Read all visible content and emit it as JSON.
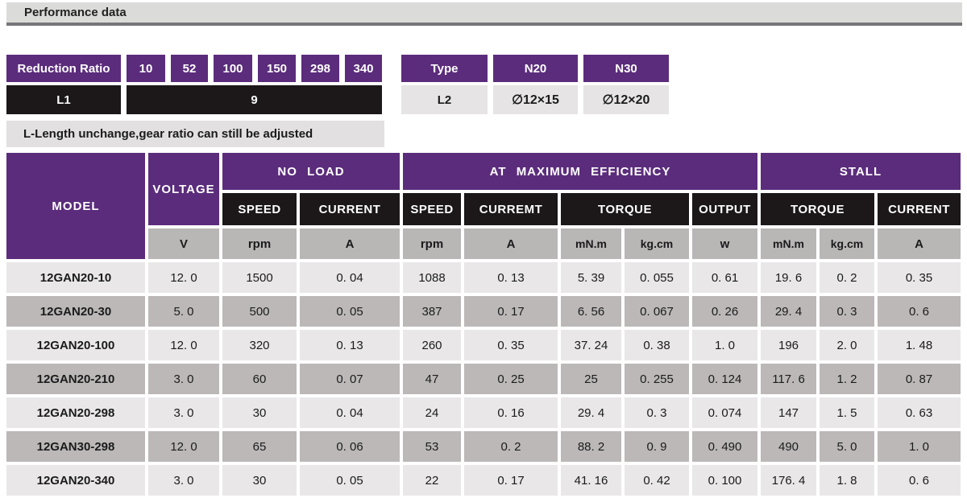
{
  "header": {
    "title": "Performance data"
  },
  "colors": {
    "purple": "#5b2c7c",
    "black_cell": "#1c1819",
    "unit_gray": "#b9b6b6",
    "row_light": "#e9e7e7",
    "row_dark": "#bcb8b8",
    "titlebar_bg": "#dbdbd9",
    "titlebar_border": "#76767a"
  },
  "reduction_table": {
    "label": "Reduction Ratio",
    "ratios": [
      "10",
      "52",
      "100",
      "150",
      "298",
      "340"
    ],
    "l1_label": "L1",
    "l1_value": "9"
  },
  "type_table": {
    "type_header": "Type",
    "col_headers": [
      "N20",
      "N30"
    ],
    "row_label": "L2",
    "row_values": [
      "∅12×15",
      "∅12×20"
    ]
  },
  "note_text": "L-Length unchange,gear ratio can still be adjusted",
  "main_table": {
    "model_header": "MODEL",
    "voltage_header": "VOLTAGE",
    "group_headers": {
      "no_load": "NO LOAD",
      "max_efficiency": "AT MAXIMUM EFFICIENCY",
      "stall": "STALL"
    },
    "sub_headers": [
      "SPEED",
      "CURRENT",
      "SPEED",
      "CURREMT",
      "TORQUE",
      "OUTPUT",
      "TORQUE",
      "CURRENT"
    ],
    "units": [
      "V",
      "rpm",
      "A",
      "rpm",
      "A",
      "mN.m",
      "kg.cm",
      "w",
      "mN.m",
      "kg.cm",
      "A"
    ],
    "rows": [
      {
        "model": "12GAN20-10",
        "values": [
          "12. 0",
          "1500",
          "0. 04",
          "1088",
          "0. 13",
          "5. 39",
          "0. 055",
          "0. 61",
          "19. 6",
          "0. 2",
          "0. 35"
        ]
      },
      {
        "model": "12GAN20-30",
        "values": [
          "5. 0",
          "500",
          "0. 05",
          "387",
          "0. 17",
          "6. 56",
          "0. 067",
          "0. 26",
          "29. 4",
          "0. 3",
          "0. 6"
        ]
      },
      {
        "model": "12GAN20-100",
        "values": [
          "12. 0",
          "320",
          "0. 13",
          "260",
          "0. 35",
          "37. 24",
          "0. 38",
          "1. 0",
          "196",
          "2. 0",
          "1. 48"
        ]
      },
      {
        "model": "12GAN20-210",
        "values": [
          "3. 0",
          "60",
          "0. 07",
          "47",
          "0. 25",
          "25",
          "0. 255",
          "0. 124",
          "117. 6",
          "1. 2",
          "0. 87"
        ]
      },
      {
        "model": "12GAN20-298",
        "values": [
          "3. 0",
          "30",
          "0. 04",
          "24",
          "0. 16",
          "29. 4",
          "0. 3",
          "0. 074",
          "147",
          "1. 5",
          "0. 63"
        ]
      },
      {
        "model": "12GAN30-298",
        "values": [
          "12. 0",
          "65",
          "0. 06",
          "53",
          "0. 2",
          "88. 2",
          "0. 9",
          "0. 490",
          "490",
          "5. 0",
          "1. 0"
        ]
      },
      {
        "model": "12GAN20-340",
        "values": [
          "3. 0",
          "30",
          "0. 05",
          "22",
          "0. 17",
          "41. 16",
          "0. 42",
          "0. 100",
          "176. 4",
          "1. 8",
          "0. 6"
        ]
      }
    ]
  }
}
